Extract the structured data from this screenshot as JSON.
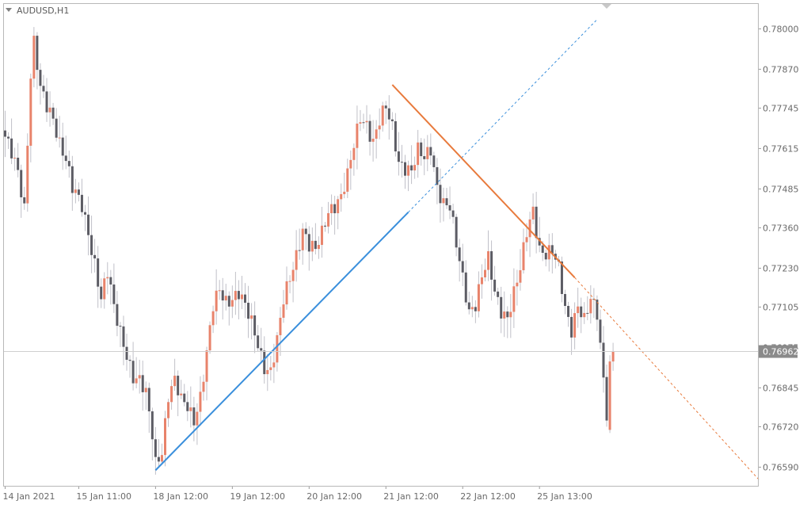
{
  "header": {
    "symbol_label": "AUDUSD,H1"
  },
  "colors": {
    "bull": "#e8836b",
    "bear": "#5c5c64",
    "wick": "#c0c0c8",
    "support": "#3a8fdc",
    "resistance": "#e87a3c",
    "price_line": "#cfcfcf",
    "price_box": "#8a8a8a",
    "frame": "#b8b8b8"
  },
  "chart_data": {
    "type": "candlestick",
    "timeframe": "H1",
    "ylim": [
      0.7653,
      0.7808
    ],
    "y_ticks": [
      "0.78000",
      "0.77870",
      "0.77745",
      "0.77615",
      "0.77485",
      "0.77360",
      "0.77230",
      "0.77105",
      "0.76975",
      "0.76845",
      "0.76720",
      "0.76590"
    ],
    "y_tick_values": [
      0.78,
      0.7787,
      0.77745,
      0.77615,
      0.77485,
      0.7736,
      0.7723,
      0.77105,
      0.76975,
      0.76845,
      0.7672,
      0.7659
    ],
    "x_ticks": [
      {
        "label": "14 Jan 2021",
        "bar": 0
      },
      {
        "label": "15 Jan 11:00",
        "bar": 23
      },
      {
        "label": "18 Jan 12:00",
        "bar": 47
      },
      {
        "label": "19 Jan 12:00",
        "bar": 71
      },
      {
        "label": "20 Jan 12:00",
        "bar": 95
      },
      {
        "label": "21 Jan 12:00",
        "bar": 119
      },
      {
        "label": "22 Jan 12:00",
        "bar": 143
      },
      {
        "label": "25 Jan 13:00",
        "bar": 167
      }
    ],
    "bar_count": 191,
    "current_price": "0.76962",
    "current_price_value": 0.76962,
    "trendlines": [
      {
        "name": "support",
        "from": {
          "bar": 47,
          "price": 0.7658
        },
        "to": {
          "bar": 126,
          "price": 0.7741
        },
        "extend_to": {
          "bar": 185,
          "price": 0.7803
        }
      },
      {
        "name": "resistance",
        "from": {
          "bar": 121,
          "price": 0.7782
        },
        "to": {
          "bar": 178,
          "price": 0.772
        },
        "extend_to": {
          "bar": 236,
          "price": 0.76545
        }
      }
    ],
    "waypoints": [
      [
        0,
        0.7764
      ],
      [
        2,
        0.776
      ],
      [
        4,
        0.7755
      ],
      [
        6,
        0.7743
      ],
      [
        8,
        0.7785
      ],
      [
        9,
        0.7795
      ],
      [
        11,
        0.778
      ],
      [
        13,
        0.7775
      ],
      [
        15,
        0.7772
      ],
      [
        17,
        0.7764
      ],
      [
        19,
        0.7758
      ],
      [
        21,
        0.7748
      ],
      [
        24,
        0.7743
      ],
      [
        26,
        0.7735
      ],
      [
        28,
        0.7725
      ],
      [
        30,
        0.7713
      ],
      [
        32,
        0.7721
      ],
      [
        34,
        0.771
      ],
      [
        36,
        0.7703
      ],
      [
        38,
        0.7696
      ],
      [
        40,
        0.7688
      ],
      [
        42,
        0.7686
      ],
      [
        44,
        0.7682
      ],
      [
        46,
        0.767
      ],
      [
        47,
        0.7661
      ],
      [
        49,
        0.7665
      ],
      [
        51,
        0.7682
      ],
      [
        53,
        0.7686
      ],
      [
        55,
        0.768
      ],
      [
        57,
        0.7679
      ],
      [
        59,
        0.7675
      ],
      [
        61,
        0.7682
      ],
      [
        63,
        0.7695
      ],
      [
        65,
        0.771
      ],
      [
        67,
        0.7716
      ],
      [
        69,
        0.7713
      ],
      [
        71,
        0.7714
      ],
      [
        73,
        0.7715
      ],
      [
        75,
        0.771
      ],
      [
        77,
        0.7705
      ],
      [
        79,
        0.7699
      ],
      [
        81,
        0.7692
      ],
      [
        83,
        0.769
      ],
      [
        85,
        0.7699
      ],
      [
        87,
        0.7712
      ],
      [
        89,
        0.772
      ],
      [
        91,
        0.7728
      ],
      [
        93,
        0.7736
      ],
      [
        95,
        0.773
      ],
      [
        97,
        0.7728
      ],
      [
        99,
        0.7734
      ],
      [
        101,
        0.7742
      ],
      [
        103,
        0.7744
      ],
      [
        105,
        0.7746
      ],
      [
        107,
        0.7752
      ],
      [
        109,
        0.7762
      ],
      [
        111,
        0.7772
      ],
      [
        113,
        0.777
      ],
      [
        115,
        0.7764
      ],
      [
        117,
        0.777
      ],
      [
        119,
        0.7774
      ],
      [
        121,
        0.7768
      ],
      [
        123,
        0.7758
      ],
      [
        125,
        0.7756
      ],
      [
        127,
        0.7754
      ],
      [
        129,
        0.776
      ],
      [
        131,
        0.7758
      ],
      [
        133,
        0.7762
      ],
      [
        135,
        0.775
      ],
      [
        137,
        0.7744
      ],
      [
        139,
        0.7742
      ],
      [
        141,
        0.773
      ],
      [
        143,
        0.772
      ],
      [
        145,
        0.771
      ],
      [
        147,
        0.7712
      ],
      [
        149,
        0.772
      ],
      [
        151,
        0.7725
      ],
      [
        153,
        0.7715
      ],
      [
        155,
        0.771
      ],
      [
        157,
        0.7708
      ],
      [
        159,
        0.7715
      ],
      [
        161,
        0.7722
      ],
      [
        163,
        0.7734
      ],
      [
        165,
        0.7742
      ],
      [
        167,
        0.773
      ],
      [
        169,
        0.7728
      ],
      [
        171,
        0.7728
      ],
      [
        173,
        0.7722
      ],
      [
        175,
        0.771
      ],
      [
        177,
        0.7704
      ],
      [
        179,
        0.7712
      ],
      [
        181,
        0.7706
      ],
      [
        183,
        0.7712
      ],
      [
        185,
        0.7708
      ],
      [
        187,
        0.7688
      ],
      [
        189,
        0.7676
      ],
      [
        190,
        0.767
      ]
    ],
    "tail_candles": [
      {
        "bar": 188,
        "open": 0.7688,
        "high": 0.7692,
        "low": 0.7672,
        "close": 0.7674
      },
      {
        "bar": 189,
        "open": 0.7671,
        "high": 0.7695,
        "low": 0.767,
        "close": 0.7693
      },
      {
        "bar": 190,
        "open": 0.7693,
        "high": 0.7699,
        "low": 0.769,
        "close": 0.76962
      }
    ]
  }
}
